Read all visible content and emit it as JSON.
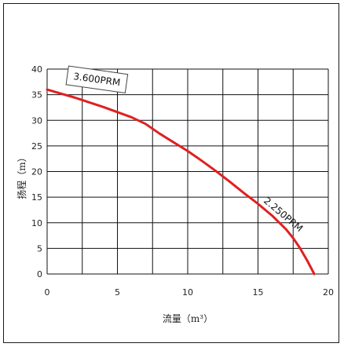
{
  "chart_data": {
    "type": "line",
    "title": "",
    "xlabel": "流量（m³）",
    "ylabel": "扬程（m）",
    "xlim": [
      0,
      20
    ],
    "ylim": [
      0,
      40
    ],
    "xticks": [
      0,
      5,
      10,
      15,
      20
    ],
    "yticks": [
      0,
      5,
      10,
      15,
      20,
      25,
      30,
      35,
      40
    ],
    "grid": true,
    "colors": {
      "curve": "#e02020",
      "grid": "#111111"
    },
    "series": [
      {
        "x": [
          0,
          1,
          2,
          3,
          4,
          5,
          6,
          7,
          8,
          9,
          10,
          11,
          12,
          13,
          14,
          15,
          16,
          17,
          17.5,
          18,
          18.5,
          19
        ],
        "y": [
          36,
          35.2,
          34.4,
          33.5,
          32.6,
          31.6,
          30.6,
          29.3,
          27.4,
          25.7,
          24,
          22.1,
          20.1,
          18,
          15.8,
          13.7,
          11.4,
          8.7,
          7,
          5,
          2.6,
          0
        ]
      }
    ],
    "annotations": [
      {
        "text": "3.600PRM",
        "x": 2.2,
        "y": 39.5
      },
      {
        "text": "2.250PRM",
        "x": 16.8,
        "y": 11.6
      }
    ]
  }
}
